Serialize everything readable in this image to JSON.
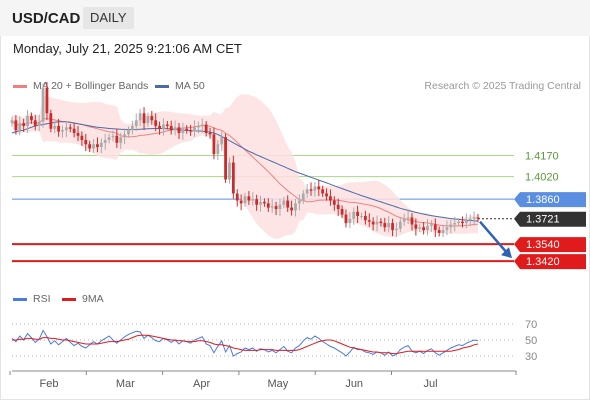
{
  "header": {
    "symbol": "USD/CAD",
    "period": "DAILY"
  },
  "timestamp": "Monday, July 21, 2025 9:21:06 AM CET",
  "legend": {
    "ma20": "MA 20 + Bollinger Bands",
    "ma50": "MA 50",
    "credit": "Research © 2025 Trading Central"
  },
  "rsi_legend": {
    "rsi": "RSI",
    "ma9": "9MA"
  },
  "colors": {
    "up_candle": "#aaaaaa",
    "down_candle": "#cc2a2a",
    "bollinger_fill": "#fde0e0",
    "ma20": "#f08080",
    "ma50": "#4a6aaa",
    "resistance": "#a8d888",
    "pivot": "#5a8ee0",
    "support": "#e01b1b",
    "current": "#333333",
    "rsi": "#4a7ae0",
    "rsi_ma": "#e01b1b",
    "arrow": "#2f62b5"
  },
  "chart_data": [
    {
      "type": "candlestick",
      "title": "USD/CAD",
      "x_labels": [
        "Feb",
        "Mar",
        "Apr",
        "May",
        "Jun",
        "Jul"
      ],
      "ylim": [
        1.325,
        1.455
      ],
      "close": [
        1.442,
        1.435,
        1.44,
        1.438,
        1.445,
        1.442,
        1.438,
        1.441,
        1.465,
        1.447,
        1.436,
        1.438,
        1.434,
        1.435,
        1.437,
        1.436,
        1.433,
        1.431,
        1.428,
        1.425,
        1.422,
        1.425,
        1.423,
        1.426,
        1.428,
        1.43,
        1.431,
        1.426,
        1.43,
        1.432,
        1.435,
        1.438,
        1.442,
        1.447,
        1.44,
        1.445,
        1.442,
        1.438,
        1.436,
        1.439,
        1.438,
        1.435,
        1.437,
        1.433,
        1.436,
        1.435,
        1.434,
        1.437,
        1.438,
        1.439,
        1.433,
        1.432,
        1.418,
        1.425,
        1.43,
        1.4,
        1.412,
        1.39,
        1.385,
        1.383,
        1.388,
        1.385,
        1.386,
        1.382,
        1.384,
        1.383,
        1.38,
        1.381,
        1.379,
        1.382,
        1.385,
        1.38,
        1.378,
        1.383,
        1.385,
        1.39,
        1.393,
        1.392,
        1.395,
        1.393,
        1.39,
        1.388,
        1.385,
        1.382,
        1.379,
        1.375,
        1.369,
        1.372,
        1.377,
        1.374,
        1.374,
        1.371,
        1.37,
        1.368,
        1.37,
        1.369,
        1.366,
        1.369,
        1.364,
        1.365,
        1.37,
        1.372,
        1.373,
        1.368,
        1.365,
        1.366,
        1.364,
        1.367,
        1.368,
        1.364,
        1.362,
        1.364,
        1.366,
        1.368,
        1.369,
        1.37,
        1.369,
        1.371,
        1.372,
        1.373,
        1.3721
      ],
      "ma50": [
        1.433,
        1.434,
        1.4345,
        1.435,
        1.436,
        1.437,
        1.438,
        1.4385,
        1.439,
        1.4395,
        1.44,
        1.4405,
        1.441,
        1.441,
        1.441,
        1.4405,
        1.44,
        1.4395,
        1.439,
        1.4385,
        1.438,
        1.4375,
        1.437,
        1.4368,
        1.4365,
        1.4362,
        1.436,
        1.4358,
        1.4356,
        1.4355,
        1.4354,
        1.4354,
        1.4355,
        1.4357,
        1.4358,
        1.436,
        1.4361,
        1.4362,
        1.4362,
        1.4361,
        1.436,
        1.4358,
        1.4355,
        1.4352,
        1.435,
        1.4348,
        1.4346,
        1.4345,
        1.4344,
        1.4343,
        1.434,
        1.4335,
        1.433,
        1.432,
        1.4305,
        1.429,
        1.4275,
        1.426,
        1.4245,
        1.423,
        1.4215,
        1.42,
        1.4188,
        1.4175,
        1.4163,
        1.4151,
        1.4139,
        1.4127,
        1.4115,
        1.4103,
        1.4091,
        1.4079,
        1.4067,
        1.4055,
        1.4045,
        1.4035,
        1.4025,
        1.4015,
        1.4005,
        1.3995,
        1.3985,
        1.3975,
        1.3965,
        1.3955,
        1.3945,
        1.3935,
        1.3925,
        1.3915,
        1.3905,
        1.3895,
        1.3885,
        1.3876,
        1.3867,
        1.3858,
        1.3849,
        1.384,
        1.3831,
        1.3822,
        1.3813,
        1.3804,
        1.3795,
        1.3787,
        1.378,
        1.3773,
        1.3766,
        1.376,
        1.3754,
        1.3748,
        1.3743,
        1.3738,
        1.3734,
        1.373,
        1.3726,
        1.3722,
        1.3719,
        1.3716,
        1.3713,
        1.371,
        1.3708,
        1.3706,
        1.3704
      ],
      "levels": [
        {
          "value": 1.417,
          "label": "1.4170",
          "kind": "resistance"
        },
        {
          "value": 1.402,
          "label": "1.4020",
          "kind": "resistance"
        },
        {
          "value": 1.386,
          "label": "1.3860",
          "kind": "pivot"
        },
        {
          "value": 1.3721,
          "label": "1.3721",
          "kind": "current"
        },
        {
          "value": 1.354,
          "label": "1.3540",
          "kind": "support"
        },
        {
          "value": 1.342,
          "label": "1.3420",
          "kind": "support"
        }
      ]
    },
    {
      "type": "line",
      "title": "RSI",
      "x_labels": [
        "Feb",
        "Mar",
        "Apr",
        "May",
        "Jun",
        "Jul"
      ],
      "ylim": [
        20,
        80
      ],
      "y_ticks": [
        70,
        50,
        30
      ],
      "series": [
        {
          "name": "RSI",
          "values": [
            52,
            48,
            55,
            50,
            58,
            53,
            47,
            51,
            62,
            54,
            45,
            49,
            44,
            48,
            52,
            47,
            43,
            46,
            42,
            40,
            44,
            48,
            45,
            49,
            52,
            55,
            50,
            46,
            50,
            54,
            57,
            59,
            61,
            60,
            52,
            56,
            53,
            49,
            48,
            52,
            50,
            47,
            50,
            45,
            49,
            48,
            46,
            50,
            52,
            54,
            45,
            43,
            34,
            42,
            49,
            35,
            43,
            30,
            33,
            35,
            40,
            38,
            40,
            36,
            39,
            38,
            35,
            37,
            34,
            38,
            42,
            36,
            34,
            40,
            43,
            49,
            53,
            51,
            55,
            52,
            48,
            45,
            42,
            40,
            37,
            34,
            30,
            35,
            41,
            38,
            38,
            35,
            34,
            32,
            35,
            34,
            31,
            35,
            30,
            32,
            38,
            41,
            43,
            36,
            34,
            36,
            33,
            37,
            39,
            34,
            31,
            34,
            37,
            40,
            42,
            44,
            43,
            46,
            48,
            50,
            49
          ]
        },
        {
          "name": "9MA",
          "values": [
            50,
            50,
            51,
            51,
            52,
            52,
            51,
            51,
            53,
            53,
            52,
            52,
            51,
            50,
            50,
            49,
            48,
            47,
            46,
            45,
            45,
            45,
            45,
            46,
            47,
            48,
            48,
            48,
            49,
            50,
            51,
            53,
            55,
            56,
            56,
            56,
            55,
            54,
            53,
            52,
            51,
            50,
            50,
            49,
            49,
            48,
            48,
            48,
            49,
            49,
            48,
            47,
            45,
            44,
            44,
            43,
            42,
            40,
            39,
            38,
            37,
            37,
            37,
            37,
            38,
            38,
            38,
            38,
            37,
            37,
            37,
            37,
            37,
            37,
            38,
            40,
            42,
            44,
            46,
            48,
            49,
            50,
            50,
            49,
            47,
            45,
            43,
            41,
            40,
            39,
            38,
            37,
            36,
            35,
            35,
            34,
            34,
            34,
            33,
            33,
            34,
            35,
            36,
            36,
            36,
            36,
            36,
            36,
            36,
            36,
            36,
            36,
            36,
            36,
            37,
            38,
            40,
            41,
            42,
            44,
            45
          ]
        }
      ]
    }
  ]
}
